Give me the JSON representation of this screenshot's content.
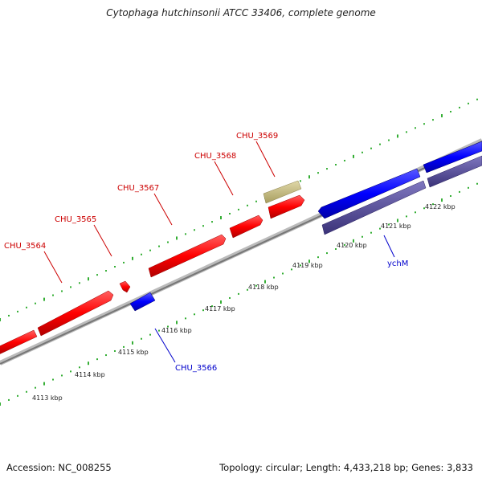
{
  "title": "Cytophaga hutchinsonii ATCC 33406, complete genome",
  "footer": {
    "accession": "Accession: NC_008255",
    "summary": "Topology: circular; Length: 4,433,218 bp; Genes: 3,833"
  },
  "colors": {
    "forward_gene": "#ff0000",
    "reverse_gene": "#0000ff",
    "reverse_gene_shadow": "#4a4090",
    "other_feature": "#c8bf82",
    "backbone": "#888888",
    "tick": "#009900",
    "forward_label": "#cc0000",
    "reverse_label": "#0000cc"
  },
  "kbp_labels": [
    "4113 kbp",
    "4114 kbp",
    "4115 kbp",
    "4116 kbp",
    "4117 kbp",
    "4118 kbp",
    "4119 kbp",
    "4120 kbp",
    "4121 kbp",
    "4122 kbp"
  ],
  "gene_labels": {
    "chu3564": "CHU_3564",
    "chu3565": "CHU_3565",
    "chu3567": "CHU_3567",
    "chu3568": "CHU_3568",
    "chu3569": "CHU_3569",
    "chu3566": "CHU_3566",
    "ychm": "ychM"
  }
}
